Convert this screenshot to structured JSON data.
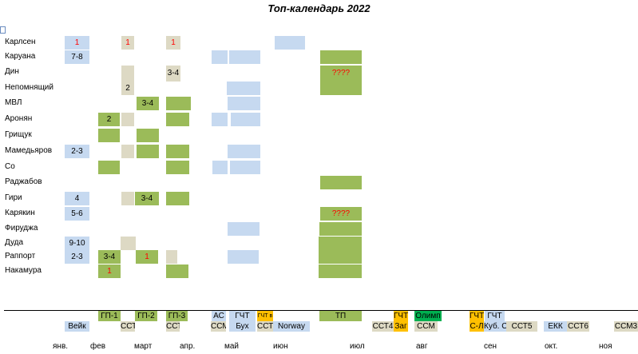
{
  "title": "Топ-календарь 2022",
  "players": [
    "Карлсен",
    "Каруана",
    "Дин",
    "Непомнящий",
    "МВЛ",
    "Аронян",
    "Грищук",
    "Мамедьяров",
    "Со",
    "Раджабов",
    "Гири",
    "Карякин",
    "Фируджа",
    "Дуда",
    "Раппорт",
    "Накамура"
  ],
  "cells": {
    "karlsen_a": "1",
    "karlsen_c": "1",
    "karlsen_e": "1",
    "caruana_a": "7-8",
    "ding_e": "3-4",
    "ding_tp": "????",
    "nepo_c": "2",
    "mvl_d": "3-4",
    "aronian_b": "2",
    "mamed_a": "2-3",
    "giri_a": "4",
    "giri_d": "3-4",
    "karjakin_a": "5-6",
    "karjakin_tp": "????",
    "duda_a": "9-10",
    "rapport_a": "2-3",
    "rapport_b": "3-4",
    "rapport_d": "1",
    "nakamura_b": "1"
  },
  "events_row1": [
    "ГП-1",
    "ГП-2",
    "ГП-3",
    "АС",
    "ГЧТ",
    "ГЧТ в",
    "ТП",
    "ГЧТ",
    "Олимп",
    "ГЧТ",
    "ГЧТ"
  ],
  "events_row2": [
    "Вейк",
    "ССТ",
    "ССТ",
    "ССМ",
    "Бух",
    "ССТ3",
    "Norway",
    "ССТ4",
    "Заг",
    "ССМ",
    "С-Л",
    "Куб. С.",
    "ССТ5",
    "ЕКК",
    "ССТ6",
    "ССМ3"
  ],
  "months": [
    "янв.",
    "фев",
    "март",
    "апр.",
    "май",
    "июн",
    "июл",
    "авг",
    "сен",
    "окт.",
    "ноя"
  ],
  "colors": {
    "blue": "#c6d9f0",
    "green": "#9bbb59",
    "beige": "#ddd9c4",
    "orange": "#ffc000",
    "dark_green": "#00b050",
    "red": "#ff0000"
  }
}
